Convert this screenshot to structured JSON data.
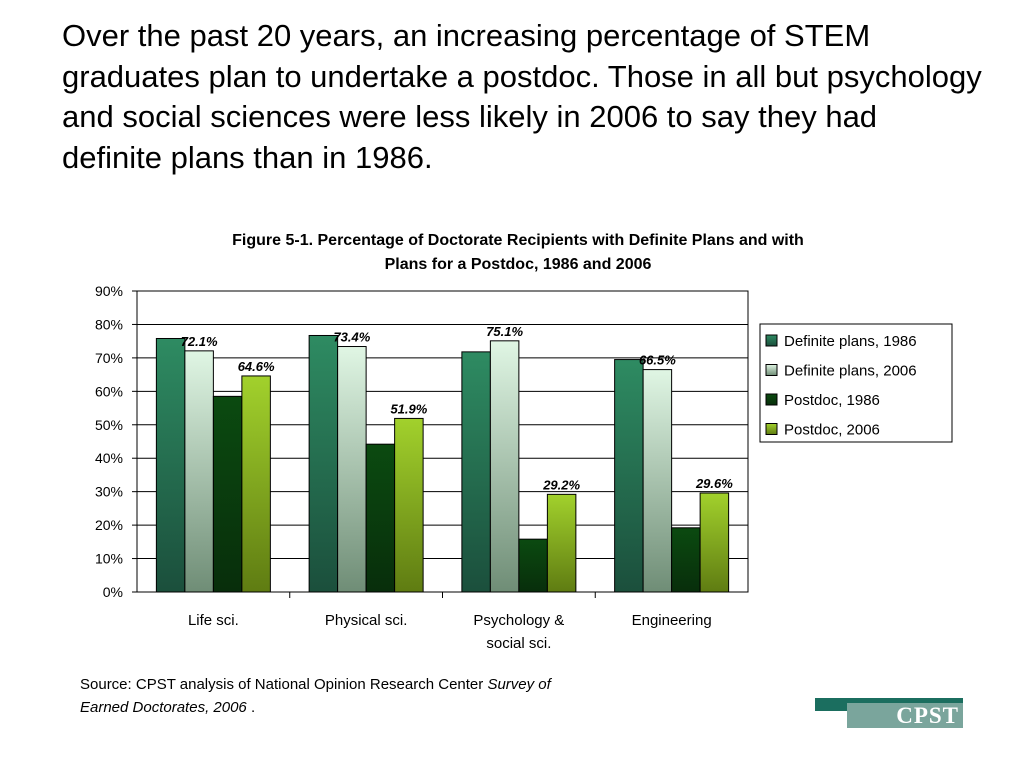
{
  "headline": "Over the past 20 years, an increasing percentage of STEM graduates plan to undertake a postdoc. Those in all but psychology and social sciences were less likely in 2006 to say they had definite plans than in 1986.",
  "figure_title_line1": "Figure 5-1. Percentage of Doctorate Recipients with Definite Plans and with",
  "figure_title_line2": "Plans for a Postdoc, 1986 and 2006",
  "source": {
    "prefix": "Source: CPST analysis of National Opinion Research Center ",
    "italic_line1": "Survey of",
    "italic_line2": "Earned Doctorates, 2006",
    "suffix": " ."
  },
  "logo": {
    "text": "CPST"
  },
  "chart_data": {
    "type": "bar",
    "title": "Figure 5-1. Percentage of Doctorate Recipients with Definite Plans and with Plans for a Postdoc, 1986 and 2006",
    "categories": [
      [
        "Life sci."
      ],
      [
        "Physical sci."
      ],
      [
        "Psychology &",
        "social sci."
      ],
      [
        "Engineering"
      ]
    ],
    "ylim": [
      0,
      90
    ],
    "yticks": [
      "0%",
      "10%",
      "20%",
      "30%",
      "40%",
      "50%",
      "60%",
      "70%",
      "80%",
      "90%"
    ],
    "grid": true,
    "legend_position": "right",
    "series": [
      {
        "name": "Definite plans, 1986",
        "values": [
          75.8,
          76.7,
          71.8,
          69.5
        ],
        "color_top": "#2e8b62",
        "color_bottom": "#1b4f3c",
        "labels": [
          "",
          "",
          "",
          ""
        ]
      },
      {
        "name": "Definite plans, 2006",
        "values": [
          72.1,
          73.4,
          75.1,
          66.5
        ],
        "color_top": "#e0f6e4",
        "color_bottom": "#6f8d76",
        "labels": [
          "72.1%",
          "73.4%",
          "75.1%",
          "66.5%"
        ]
      },
      {
        "name": "Postdoc, 1986",
        "values": [
          58.5,
          44.2,
          15.8,
          19.2
        ],
        "color_top": "#0b4a10",
        "color_bottom": "#082e0b",
        "labels": [
          "",
          "",
          "",
          ""
        ]
      },
      {
        "name": "Postdoc, 2006",
        "values": [
          64.6,
          51.9,
          29.2,
          29.6
        ],
        "color_top": "#a2d12c",
        "color_bottom": "#5f7c12",
        "labels": [
          "64.6%",
          "51.9%",
          "29.2%",
          "29.6%"
        ]
      }
    ]
  }
}
